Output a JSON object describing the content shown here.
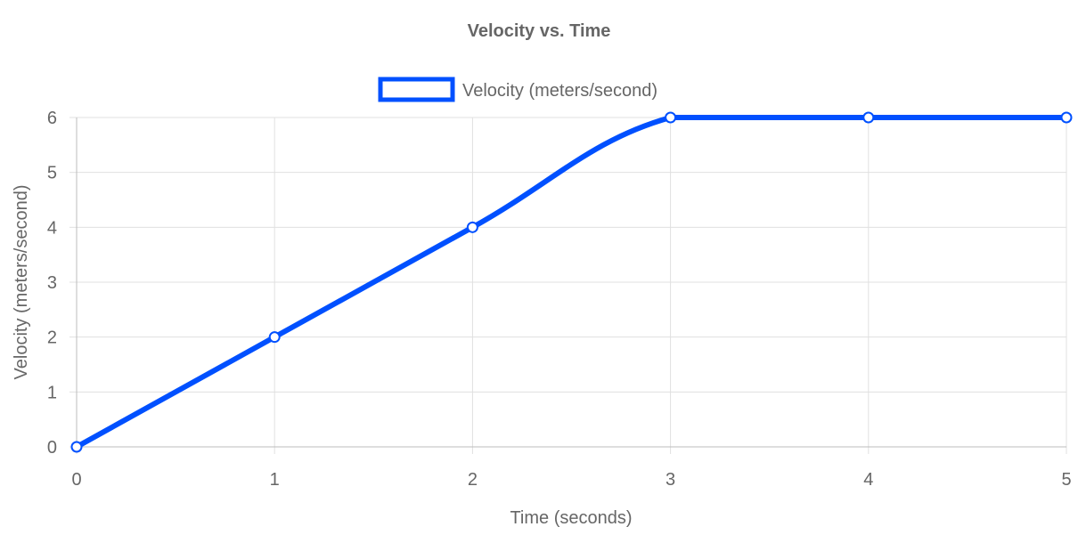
{
  "chart_data": {
    "type": "line",
    "title": "Velocity vs. Time",
    "xlabel": "Time (seconds)",
    "ylabel": "Velocity (meters/second)",
    "x": [
      0,
      1,
      2,
      3,
      4,
      5
    ],
    "series": [
      {
        "name": "Velocity (meters/second)",
        "values": [
          0,
          2,
          4,
          6,
          6,
          6
        ],
        "color": "#0050ff"
      }
    ],
    "xlim": [
      0,
      5
    ],
    "ylim": [
      0,
      6
    ],
    "x_ticks": [
      "0",
      "1",
      "2",
      "3",
      "4",
      "5"
    ],
    "y_ticks": [
      "0",
      "1",
      "2",
      "3",
      "4",
      "5",
      "6"
    ],
    "grid": true,
    "legend_position": "top-center",
    "colors": {
      "text": "#666666",
      "grid": "#e0e0e0",
      "axis": "#bdbdbd",
      "point_fill": "#ffffff"
    }
  }
}
